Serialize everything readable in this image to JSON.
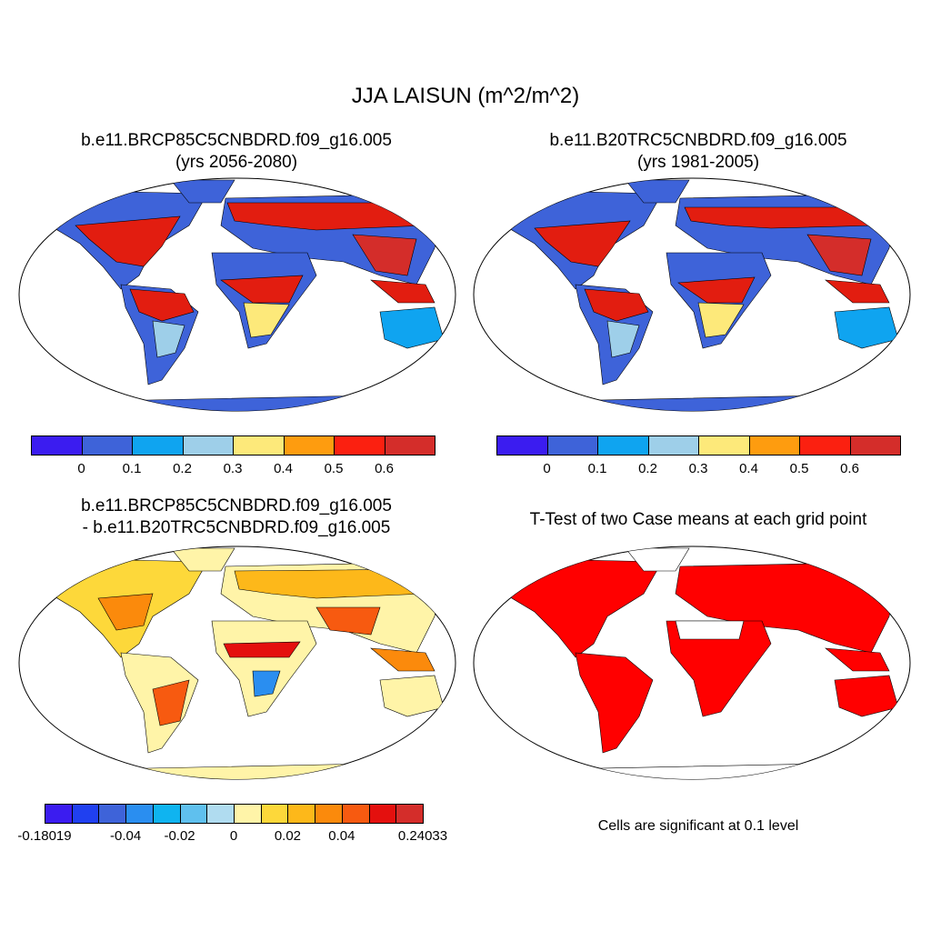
{
  "title": "JJA LAISUN (m^2/m^2)",
  "panels": [
    {
      "title_line1": "b.e11.BRCP85C5CNBDRD.f09_g16.005",
      "title_line2": "(yrs 2056-2080)"
    },
    {
      "title_line1": "b.e11.B20TRC5CNBDRD.f09_g16.005",
      "title_line2": "(yrs 1981-2005)"
    },
    {
      "title_line1": "b.e11.BRCP85C5CNBDRD.f09_g16.005",
      "title_line2": "- b.e11.B20TRC5CNBDRD.f09_g16.005"
    },
    {
      "title_line1": "T-Test of two Case means at each grid point"
    }
  ],
  "colorbar_abs": {
    "colors": [
      "#3b1cf0",
      "#3e63d9",
      "#0fa4f0",
      "#9ecfe9",
      "#fde97a",
      "#fe9c0f",
      "#fb2010",
      "#d42d2a"
    ],
    "labels": [
      "0",
      "0.1",
      "0.2",
      "0.3",
      "0.4",
      "0.5",
      "0.6"
    ]
  },
  "colorbar_diff": {
    "colors": [
      "#3b1cf0",
      "#2040f0",
      "#3e63d9",
      "#2a8ef0",
      "#0fb4f0",
      "#5fc0ee",
      "#b0dcf0",
      "#fff4a8",
      "#fdd83a",
      "#fdb81a",
      "#fb8a0c",
      "#f75a10",
      "#e4100e",
      "#d42d2a"
    ],
    "labels": [
      "-0.18019",
      "-0.04",
      "-0.02",
      "0",
      "0.02",
      "0.04",
      "0.24033"
    ]
  },
  "significance_note": "Cells are significant at 0.1 level",
  "palette": {
    "land_low": "#3e63d9",
    "land_high": "#e21d10",
    "diff_base": "#fff4a8",
    "sig": "#ff0000"
  }
}
